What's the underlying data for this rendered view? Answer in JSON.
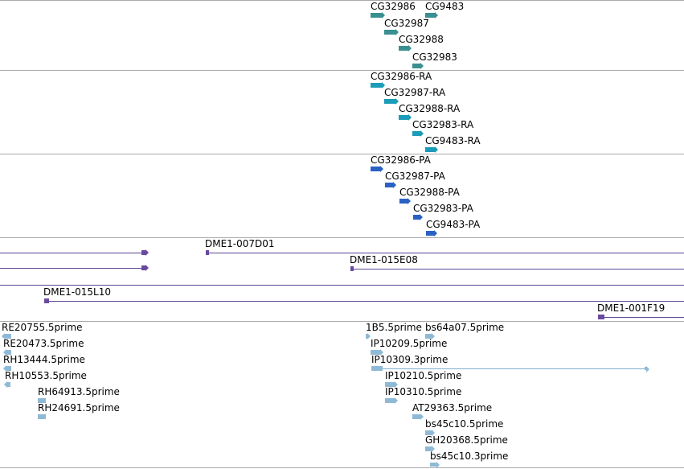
{
  "tracks": {
    "genes": [
      "CG32986",
      "CG9483",
      "CG32987",
      "CG32988",
      "CG32983"
    ],
    "transcripts": [
      "CG32986-RA",
      "CG32987-RA",
      "CG32988-RA",
      "CG32983-RA",
      "CG9483-RA"
    ],
    "proteins": [
      "CG32986-PA",
      "CG32987-PA",
      "CG32988-PA",
      "CG32983-PA",
      "CG9483-PA"
    ],
    "clones": [
      "DME1-007D01",
      "DME1-015E08",
      "DME1-015L10",
      "DME1-001F19"
    ],
    "ests_left": [
      "RE20755.5prime",
      "RE20473.5prime",
      "RH13444.5prime",
      "RH10553.5prime",
      "RH64913.5prime",
      "RH24691.5prime"
    ],
    "ests_right": [
      "1B5.5prime",
      "bs64a07.5prime",
      "IP10209.5prime",
      "IP10309.3prime",
      "IP10210.5prime",
      "IP10310.5prime",
      "AT29363.5prime",
      "bs45c10.5prime",
      "GH20368.5prime",
      "bs45c10.3prime"
    ]
  },
  "colors": {
    "gene": "#3a8f91",
    "transcript": "#1b9cb8",
    "protein": "#2a62c4",
    "clone": "#6a4aa0",
    "est": "#8fbad6"
  }
}
